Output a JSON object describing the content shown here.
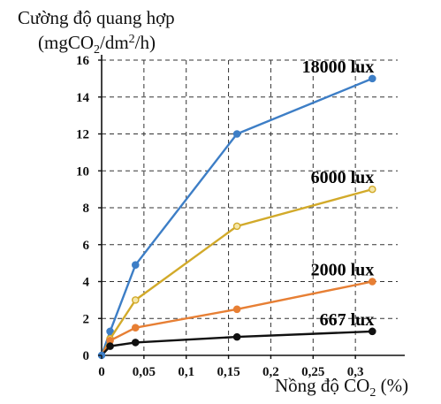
{
  "chart_data": {
    "type": "line",
    "ylabel": "Cường độ quang hợp",
    "ylabel_unit_prefix": "(mgCO",
    "ylabel_unit_sub": "2",
    "ylabel_unit_mid": "/dm",
    "ylabel_unit_sup": "2",
    "ylabel_unit_suffix": "/h)",
    "xlabel_prefix": "Nồng độ CO",
    "xlabel_sub": "2",
    "xlabel_suffix": " (%)",
    "xlim": [
      0,
      0.35
    ],
    "ylim": [
      0,
      16
    ],
    "grid": "dashed",
    "x_ticks": [
      0,
      0.05,
      0.1,
      0.15,
      0.2,
      0.25,
      0.3
    ],
    "x_tick_labels": [
      "0",
      "0,05",
      "0,1",
      "0,15",
      "0,2",
      "0,25",
      "0,3"
    ],
    "y_ticks": [
      0,
      2,
      4,
      6,
      8,
      10,
      12,
      14,
      16
    ],
    "y_tick_labels": [
      "0",
      "2",
      "4",
      "6",
      "8",
      "10",
      "12",
      "14",
      "16"
    ],
    "series": [
      {
        "name": "18000 lux",
        "color": "#3d7ec6",
        "marker_fill": "#3d7ec6",
        "x": [
          0,
          0.01,
          0.04,
          0.16,
          0.32
        ],
        "values": [
          0,
          1.3,
          4.9,
          12,
          15
        ]
      },
      {
        "name": "6000 lux",
        "color": "#d2aa2a",
        "marker_fill": "#f5e7a8",
        "x": [
          0,
          0.01,
          0.04,
          0.16,
          0.32
        ],
        "values": [
          0,
          0.9,
          3,
          7,
          9
        ]
      },
      {
        "name": "2000 lux",
        "color": "#e77f34",
        "marker_fill": "#e77f34",
        "x": [
          0,
          0.01,
          0.04,
          0.16,
          0.32
        ],
        "values": [
          0,
          0.8,
          1.5,
          2.5,
          4
        ]
      },
      {
        "name": "667 lux",
        "color": "#111111",
        "marker_fill": "#111111",
        "x": [
          0,
          0.01,
          0.04,
          0.16,
          0.32
        ],
        "values": [
          0,
          0.5,
          0.7,
          1,
          1.3
        ]
      }
    ]
  }
}
